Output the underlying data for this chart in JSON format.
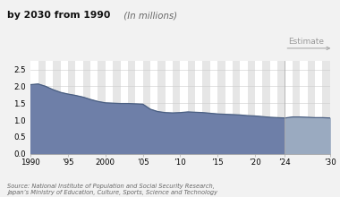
{
  "title_line2_bold": "by 2030 from 1990",
  "title_line2_italic": " (In millions)",
  "source_text": "Source: National Institute of Population and Social Security Research,\nJapan’s Ministry of Education, Culture, Sports, Science and Technology",
  "estimate_label": "Estimate",
  "estimate_year": 2024,
  "years": [
    1990,
    1991,
    1992,
    1993,
    1994,
    1995,
    1996,
    1997,
    1998,
    1999,
    2000,
    2001,
    2002,
    2003,
    2004,
    2005,
    2006,
    2007,
    2008,
    2009,
    2010,
    2011,
    2012,
    2013,
    2014,
    2015,
    2016,
    2017,
    2018,
    2019,
    2020,
    2021,
    2022,
    2023,
    2024,
    2025,
    2026,
    2027,
    2028,
    2029,
    2030
  ],
  "values": [
    2.05,
    2.07,
    2.0,
    1.9,
    1.82,
    1.77,
    1.73,
    1.68,
    1.61,
    1.55,
    1.51,
    1.5,
    1.49,
    1.49,
    1.48,
    1.47,
    1.32,
    1.25,
    1.22,
    1.21,
    1.22,
    1.24,
    1.23,
    1.22,
    1.2,
    1.18,
    1.17,
    1.16,
    1.15,
    1.13,
    1.12,
    1.1,
    1.08,
    1.07,
    1.06,
    1.09,
    1.09,
    1.08,
    1.07,
    1.07,
    1.06
  ],
  "fill_color": "#6e7fa8",
  "fill_color_estimate": "#9aaac0",
  "line_color": "#4a5f82",
  "background_color": "#f2f2f2",
  "plot_background": "#ffffff",
  "ylim": [
    0,
    2.75
  ],
  "yticks": [
    0,
    0.5,
    1.0,
    1.5,
    2.0,
    2.5
  ],
  "xtick_labels": [
    "1990",
    "’95",
    "2000",
    "’05",
    "’10",
    "’15",
    "’20",
    "’24",
    "’30"
  ],
  "xtick_positions": [
    1990,
    1995,
    2000,
    2005,
    2010,
    2015,
    2020,
    2024,
    2030
  ],
  "stripe_color": "#e6e6e6",
  "arrow_color": "#aaaaaa",
  "title_fontsize": 7.8,
  "tick_fontsize": 6.2,
  "source_fontsize": 4.8
}
